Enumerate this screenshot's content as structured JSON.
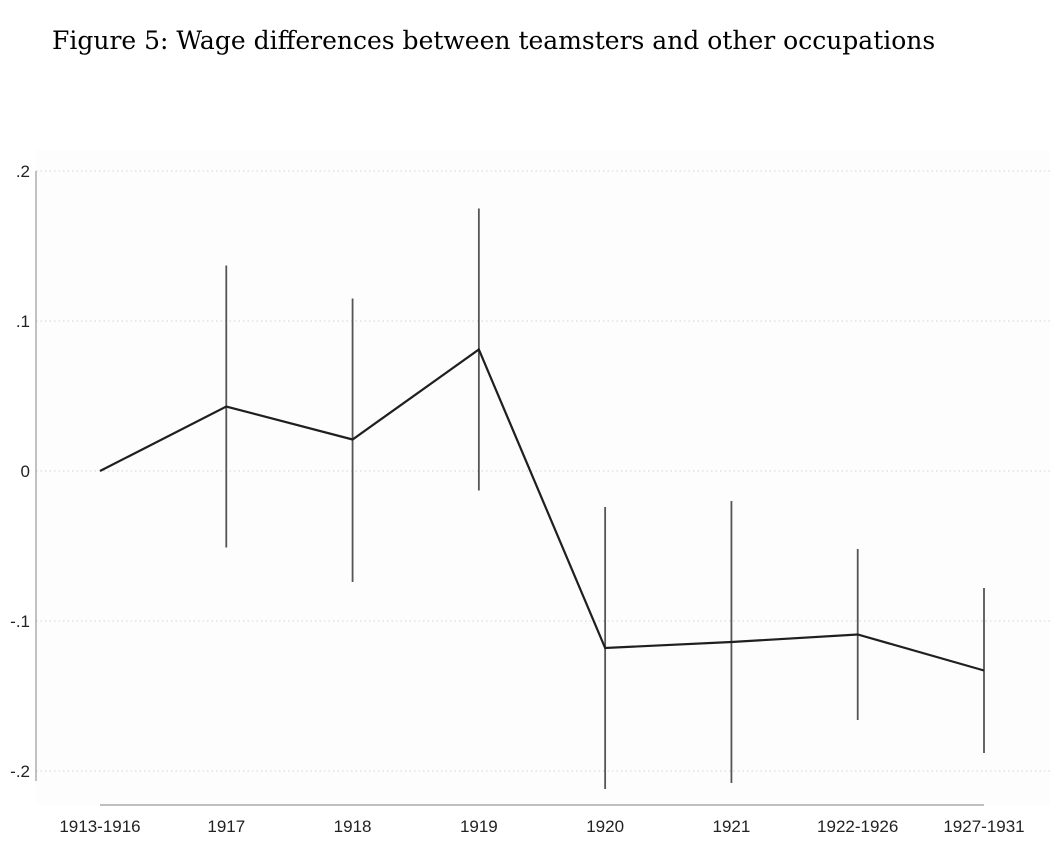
{
  "figure": {
    "title": "Figure 5: Wage differences between teamsters and other occupations"
  },
  "chart_data": {
    "type": "line",
    "title": "Figure 5: Wage differences between teamsters and other occupations",
    "xlabel": "",
    "ylabel": "",
    "categories": [
      "1913-1916",
      "1917",
      "1918",
      "1919",
      "1920",
      "1921",
      "1922-1926",
      "1927-1931"
    ],
    "series": [
      {
        "values": [
          0.0,
          0.043,
          0.021,
          0.081,
          -0.118,
          -0.114,
          -0.109,
          -0.133
        ],
        "ci_lower": [
          0.0,
          -0.051,
          -0.074,
          -0.013,
          -0.212,
          -0.208,
          -0.166,
          -0.188
        ],
        "ci_upper": [
          0.0,
          0.137,
          0.115,
          0.175,
          -0.024,
          -0.02,
          -0.052,
          -0.078
        ]
      }
    ],
    "yticks": [
      0.2,
      0.1,
      0,
      -0.1,
      -0.2
    ],
    "ytick_labels": [
      ".2",
      ".1",
      "0",
      "-.1",
      "-.2"
    ],
    "ylim": [
      -0.2,
      0.2
    ],
    "grid": true,
    "legend": "none",
    "colors": {
      "line": "#1f1f1f",
      "error_bar": "#555555",
      "grid": "#d4d4d4",
      "axis": "#999999",
      "plot_background": "#fdfdfd"
    }
  }
}
